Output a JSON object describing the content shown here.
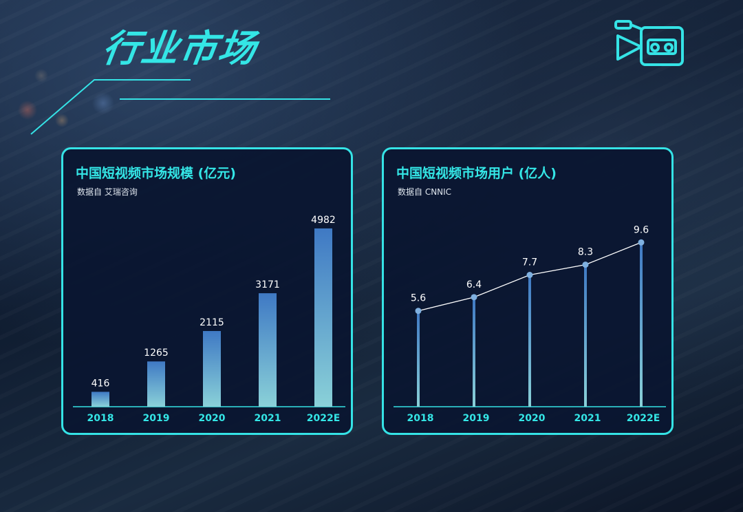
{
  "page": {
    "title": "行业市场",
    "accent_color": "#34e6e6",
    "icon": "video-camera-icon"
  },
  "chart_data": [
    {
      "type": "bar",
      "title": "中国短视频市场规模 (亿元)",
      "source": "数据自 艾瑞咨询",
      "categories": [
        "2018",
        "2019",
        "2020",
        "2021",
        "2022E"
      ],
      "values": [
        416,
        1265,
        2115,
        3171,
        4982
      ],
      "value_labels": [
        "416",
        "1265",
        "2115",
        "3171",
        "4982"
      ],
      "ylim": [
        0,
        5500
      ],
      "grid": false,
      "colors": {
        "bar_top": "#3f79c4",
        "bar_bottom": "#8ad1d8",
        "axis": "#35e3e6",
        "tick_label": "#34e6e6",
        "value_label": "#ffffff"
      }
    },
    {
      "type": "line",
      "title": "中国短视频市场用户 (亿人)",
      "source": "数据自 CNNIC",
      "categories": [
        "2018",
        "2019",
        "2020",
        "2021",
        "2022E"
      ],
      "values": [
        5.6,
        6.4,
        7.7,
        8.3,
        9.6
      ],
      "value_labels": [
        "5.6",
        "6.4",
        "7.7",
        "8.3",
        "9.6"
      ],
      "ylim": [
        0,
        11.5
      ],
      "grid": false,
      "colors": {
        "stem_top": "#3f79c4",
        "stem_bottom": "#8ad1d8",
        "line": "#ffffff",
        "point": "#7fb0e0",
        "axis": "#35e3e6",
        "tick_label": "#34e6e6",
        "value_label": "#ffffff"
      }
    }
  ]
}
